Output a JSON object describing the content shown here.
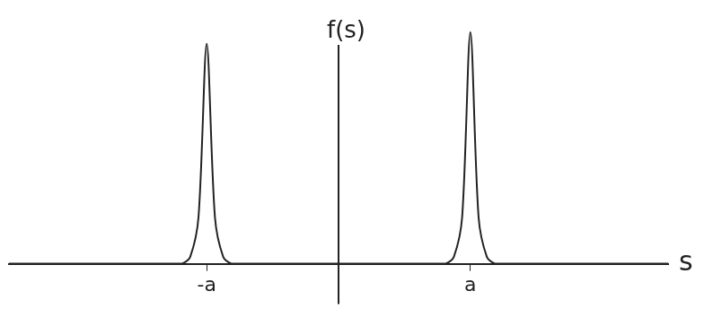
{
  "chart_data": {
    "type": "line",
    "x_label": "s",
    "y_label": "f(s)",
    "categories": [
      null,
      null,
      null,
      null,
      null,
      null,
      null,
      null,
      null,
      null,
      null,
      null,
      null,
      null,
      null,
      null,
      null,
      null,
      null,
      null,
      null,
      null,
      null,
      null,
      "-a",
      null,
      null,
      null,
      null,
      null,
      null,
      null,
      null,
      null,
      null,
      null,
      null,
      null,
      null,
      null,
      null,
      null,
      null,
      null,
      null,
      null,
      null,
      null,
      null,
      null,
      null,
      null,
      null,
      null,
      null,
      null,
      "a",
      null,
      null,
      null,
      null,
      null,
      null,
      null,
      null,
      null,
      null,
      null,
      null,
      null,
      null,
      null,
      null,
      null,
      null,
      null,
      null,
      null,
      null,
      null,
      null
    ],
    "values": [
      0,
      0,
      0,
      0,
      0,
      0,
      0,
      0,
      0,
      0,
      0,
      0,
      0,
      0,
      0,
      0,
      0,
      0,
      0,
      0,
      0,
      0,
      3,
      20,
      95,
      20,
      3,
      0,
      0,
      0,
      0,
      0,
      0,
      0,
      0,
      0,
      0,
      0,
      0,
      0,
      0,
      0,
      0,
      0,
      0,
      0,
      0,
      0,
      0,
      0,
      0,
      0,
      0,
      0,
      3,
      20,
      100,
      20,
      3,
      0,
      0,
      0,
      0,
      0,
      0,
      0,
      0,
      0,
      0,
      0,
      0,
      0,
      0,
      0,
      0,
      0,
      0,
      0,
      0,
      0,
      0
    ],
    "color": "#222222",
    "ylim": [
      0,
      110
    ],
    "grid": false,
    "tick_labels": "x"
  }
}
